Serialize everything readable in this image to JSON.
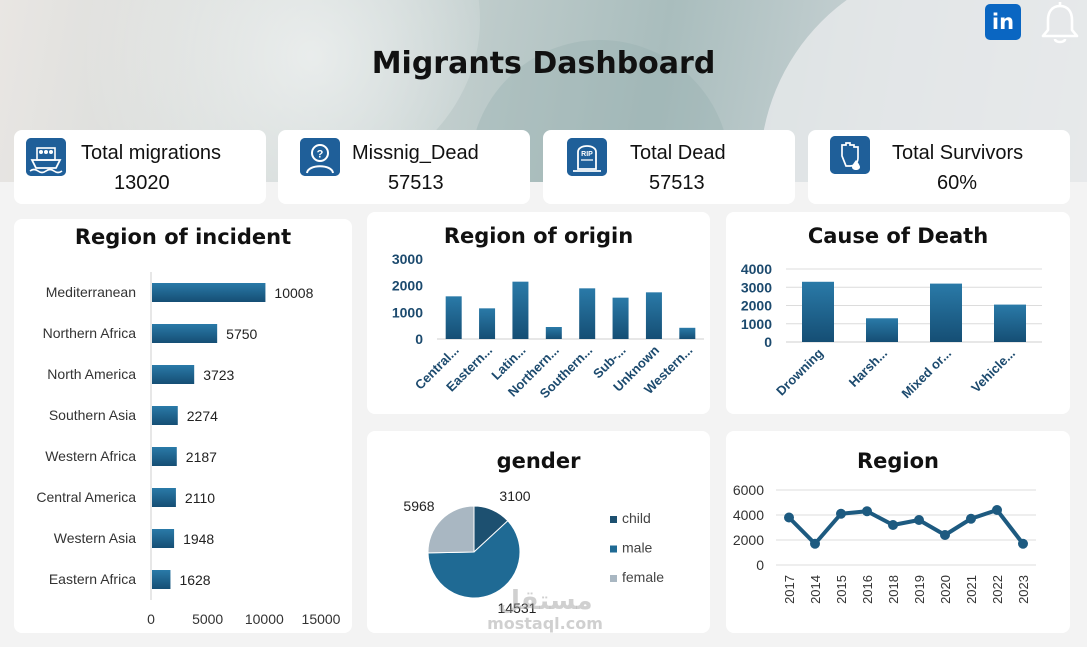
{
  "header": {
    "title": "Migrants Dashboard",
    "linkedin_label": "in",
    "icons": [
      "linkedin-icon",
      "bell-icon"
    ]
  },
  "kpis": [
    {
      "label": "Total migrations",
      "value": "13020",
      "icon": "ship-icon"
    },
    {
      "label": "Missnig_Dead",
      "value": "57513",
      "icon": "missing-person-icon"
    },
    {
      "label": "Total Dead",
      "value": "57513",
      "icon": "tombstone-icon",
      "icon_text": "RIP"
    },
    {
      "label": "Total Survivors",
      "value": "60%",
      "icon": "raised-fist-icon"
    }
  ],
  "colors": {
    "bar_dark": "#154e74",
    "bar_light": "#2a7aa8",
    "pie_child": "#1d5070",
    "pie_male": "#1f6a94",
    "pie_female": "#a9b7c2",
    "line": "#1d5a80"
  },
  "watermark": {
    "main": "مستقل",
    "sub": "mostaql.com"
  },
  "chart_data": [
    {
      "id": "region-of-incident",
      "type": "bar",
      "orientation": "horizontal",
      "title": "Region of incident",
      "categories": [
        "Mediterranean",
        "Northern Africa",
        "North America",
        "Southern Asia",
        "Western Africa",
        "Central America",
        "Western Asia",
        "Eastern Africa"
      ],
      "values": [
        10008,
        5750,
        3723,
        2274,
        2187,
        2110,
        1948,
        1628
      ],
      "xlim": [
        0,
        15000
      ],
      "xticks": [
        "0",
        "5000",
        "10000",
        "15000"
      ],
      "data_labels": true
    },
    {
      "id": "region-of-origin",
      "type": "bar",
      "title": "Region of origin",
      "categories": [
        "Central...",
        "Eastern...",
        "Latin...",
        "Northern...",
        "Southern...",
        "Sub-...",
        "Unknown",
        "Western..."
      ],
      "values": [
        1600,
        1150,
        2150,
        450,
        1900,
        1550,
        1750,
        420
      ],
      "ylim": [
        0,
        3000
      ],
      "yticks": [
        "0",
        "1000",
        "2000",
        "3000"
      ]
    },
    {
      "id": "cause-of-death",
      "type": "bar",
      "title": "Cause of Death",
      "categories": [
        "Drowning",
        "Harsh...",
        "Mixed or...",
        "Vehicle..."
      ],
      "values": [
        3300,
        1300,
        3200,
        2050
      ],
      "ylim": [
        0,
        4000
      ],
      "yticks": [
        "0",
        "1000",
        "2000",
        "3000",
        "4000"
      ],
      "grid": true
    },
    {
      "id": "gender",
      "type": "pie",
      "title": "gender",
      "categories": [
        "child",
        "male",
        "female"
      ],
      "values": [
        3100,
        14531,
        5968
      ],
      "value_labels": [
        "3100",
        "14531",
        "5968"
      ],
      "legend": "right"
    },
    {
      "id": "region-line",
      "type": "line",
      "title": "Region",
      "categories": [
        "2017",
        "2014",
        "2015",
        "2016",
        "2018",
        "2019",
        "2020",
        "2021",
        "2022",
        "2023"
      ],
      "values": [
        3800,
        1700,
        4100,
        4300,
        3200,
        3600,
        2400,
        3700,
        4400,
        1700
      ],
      "ylim": [
        0,
        6000
      ],
      "yticks": [
        "0",
        "2000",
        "4000",
        "6000"
      ],
      "grid": true
    }
  ]
}
